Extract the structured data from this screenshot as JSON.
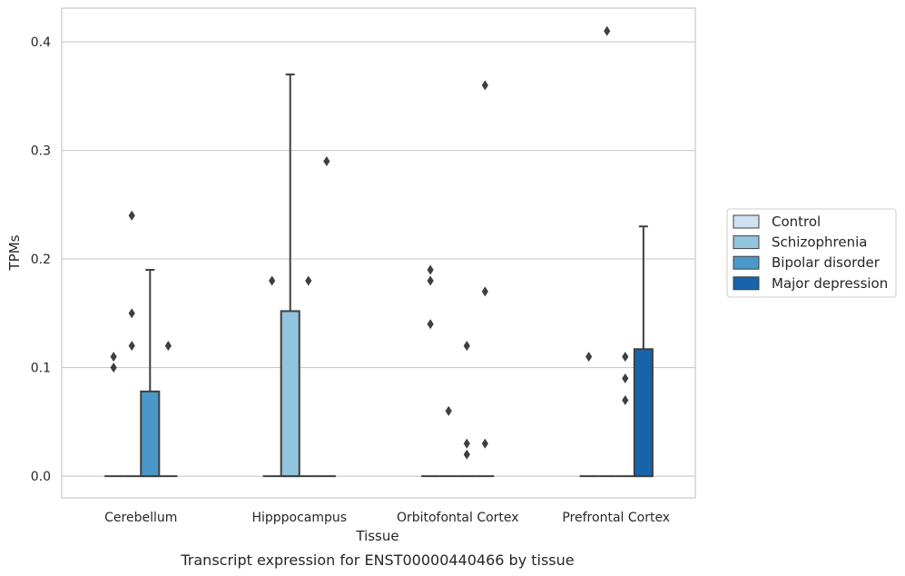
{
  "caption": "Transcript expression for ENST00000440466 by tissue",
  "chart_data": {
    "type": "box",
    "xlabel": "Tissue",
    "ylabel": "TPMs",
    "ylim": [
      -0.02,
      0.431
    ],
    "yticks": [
      0.0,
      0.1,
      0.2,
      0.3,
      0.4
    ],
    "ytick_labels": [
      "0.0",
      "0.1",
      "0.2",
      "0.3",
      "0.4"
    ],
    "grid": "horizontal",
    "legend_position": "right",
    "categories": [
      "Cerebellum",
      "Hipppocampus",
      "Orbitofontal Cortex",
      "Prefrontal Cortex"
    ],
    "series": [
      {
        "name": "Control",
        "color": "#cfe1f2"
      },
      {
        "name": "Schizophrenia",
        "color": "#93c4de"
      },
      {
        "name": "Bipolar disorder",
        "color": "#4a98c9"
      },
      {
        "name": "Major depression",
        "color": "#1764ab"
      }
    ],
    "boxes": [
      {
        "category": 0,
        "series": 0,
        "q1": 0,
        "median": 0,
        "q3": 0,
        "whisker_low": 0,
        "whisker_high": 0,
        "outliers": [
          0.1,
          0.11
        ]
      },
      {
        "category": 0,
        "series": 1,
        "q1": 0,
        "median": 0,
        "q3": 0,
        "whisker_low": 0,
        "whisker_high": 0,
        "outliers": [
          0.12,
          0.15,
          0.24
        ]
      },
      {
        "category": 0,
        "series": 2,
        "q1": 0,
        "median": 0,
        "q3": 0.078,
        "whisker_low": 0,
        "whisker_high": 0.19,
        "outliers": []
      },
      {
        "category": 0,
        "series": 3,
        "q1": 0,
        "median": 0,
        "q3": 0,
        "whisker_low": 0,
        "whisker_high": 0,
        "outliers": [
          0.12
        ]
      },
      {
        "category": 1,
        "series": 0,
        "q1": 0,
        "median": 0,
        "q3": 0,
        "whisker_low": 0,
        "whisker_high": 0,
        "outliers": [
          0.18
        ]
      },
      {
        "category": 1,
        "series": 1,
        "q1": 0,
        "median": 0,
        "q3": 0.152,
        "whisker_low": 0,
        "whisker_high": 0.37,
        "outliers": []
      },
      {
        "category": 1,
        "series": 2,
        "q1": 0,
        "median": 0,
        "q3": 0,
        "whisker_low": 0,
        "whisker_high": 0,
        "outliers": [
          0.18
        ]
      },
      {
        "category": 1,
        "series": 3,
        "q1": 0,
        "median": 0,
        "q3": 0,
        "whisker_low": 0,
        "whisker_high": 0,
        "outliers": [
          0.29
        ]
      },
      {
        "category": 2,
        "series": 0,
        "q1": 0,
        "median": 0,
        "q3": 0,
        "whisker_low": 0,
        "whisker_high": 0,
        "outliers": [
          0.14,
          0.18,
          0.19
        ]
      },
      {
        "category": 2,
        "series": 1,
        "q1": 0,
        "median": 0,
        "q3": 0,
        "whisker_low": 0,
        "whisker_high": 0,
        "outliers": [
          0.06
        ]
      },
      {
        "category": 2,
        "series": 2,
        "q1": 0,
        "median": 0,
        "q3": 0,
        "whisker_low": 0,
        "whisker_high": 0,
        "outliers": [
          0.02,
          0.03,
          0.12
        ]
      },
      {
        "category": 2,
        "series": 3,
        "q1": 0,
        "median": 0,
        "q3": 0,
        "whisker_low": 0,
        "whisker_high": 0,
        "outliers": [
          0.03,
          0.17,
          0.36
        ]
      },
      {
        "category": 3,
        "series": 0,
        "q1": 0,
        "median": 0,
        "q3": 0,
        "whisker_low": 0,
        "whisker_high": 0,
        "outliers": [
          0.11
        ]
      },
      {
        "category": 3,
        "series": 1,
        "q1": 0,
        "median": 0,
        "q3": 0,
        "whisker_low": 0,
        "whisker_high": 0,
        "outliers": [
          0.41
        ]
      },
      {
        "category": 3,
        "series": 2,
        "q1": 0,
        "median": 0,
        "q3": 0,
        "whisker_low": 0,
        "whisker_high": 0,
        "outliers": [
          0.07,
          0.09,
          0.11
        ]
      },
      {
        "category": 3,
        "series": 3,
        "q1": 0,
        "median": 0,
        "q3": 0.117,
        "whisker_low": 0,
        "whisker_high": 0.23,
        "outliers": []
      }
    ]
  }
}
